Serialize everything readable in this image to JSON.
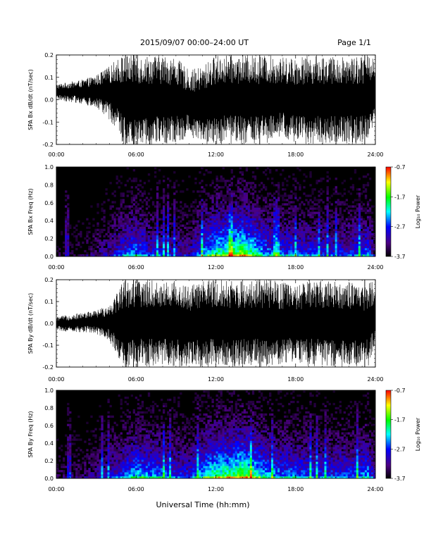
{
  "header": {
    "date_range": "2015/09/07  00:00–24:00 UT",
    "page": "Page 1/1"
  },
  "xlabel": "Universal Time (hh:mm)",
  "x_ticks": [
    "00:00",
    "06:00",
    "12:00",
    "18:00",
    "24:00"
  ],
  "colors": {
    "trace": "#000000",
    "background": "#ffffff"
  },
  "chart_data": [
    {
      "type": "line",
      "id": "bx-trace",
      "ylabel": "SPA Bx dB/dt (nT/sec)",
      "xlim": [
        0,
        24
      ],
      "ylim": [
        -0.2,
        0.2
      ],
      "y_ticks": [
        "0.2",
        "0.1",
        "0.0",
        "-0.1",
        "-0.2"
      ],
      "envelope": {
        "x": [
          0,
          1,
          2,
          3,
          4,
          4.5,
          5,
          5.5,
          6,
          6.5,
          7,
          8,
          9,
          10,
          11,
          12,
          13,
          14,
          15,
          16,
          17,
          18,
          19,
          20,
          21,
          22,
          23,
          23.5,
          24
        ],
        "upper": [
          0.07,
          0.08,
          0.09,
          0.11,
          0.15,
          0.18,
          0.2,
          0.2,
          0.2,
          0.2,
          0.2,
          0.2,
          0.19,
          0.13,
          0.15,
          0.2,
          0.2,
          0.2,
          0.2,
          0.2,
          0.19,
          0.19,
          0.2,
          0.2,
          0.19,
          0.2,
          0.2,
          0.2,
          0.2
        ],
        "lower": [
          0.0,
          -0.01,
          -0.02,
          -0.04,
          -0.09,
          -0.13,
          -0.2,
          -0.2,
          -0.2,
          -0.2,
          -0.2,
          -0.2,
          -0.2,
          -0.16,
          -0.2,
          -0.2,
          -0.2,
          -0.2,
          -0.2,
          -0.2,
          -0.17,
          -0.2,
          -0.2,
          -0.2,
          -0.2,
          -0.2,
          -0.2,
          -0.2,
          -0.1
        ]
      }
    },
    {
      "type": "heatmap",
      "id": "bx-spectrogram",
      "ylabel": "SPA Bx Freq (Hz)",
      "xlim": [
        0,
        24
      ],
      "ylim": [
        0.0,
        1.0
      ],
      "y_ticks": [
        "1.0",
        "0.8",
        "0.6",
        "0.4",
        "0.2",
        "0.0"
      ],
      "colorbar": {
        "label": "Log₁₀ Power",
        "range": [
          -3.7,
          -0.7
        ],
        "ticks": [
          "-0.7",
          "-1.7",
          "-2.7",
          "-3.7"
        ]
      },
      "activity": {
        "x": [
          0,
          2,
          4,
          5,
          6,
          7,
          9,
          10,
          11,
          12,
          13,
          14,
          15,
          16,
          18,
          20,
          22,
          23.5,
          24
        ],
        "level": [
          0.1,
          0.15,
          0.3,
          0.45,
          0.55,
          0.4,
          0.35,
          0.3,
          0.55,
          0.7,
          0.75,
          0.85,
          0.65,
          0.5,
          0.45,
          0.4,
          0.4,
          0.5,
          0.2
        ]
      }
    },
    {
      "type": "line",
      "id": "by-trace",
      "ylabel": "SPA By dB/dt (nT/sec)",
      "xlim": [
        0,
        24
      ],
      "ylim": [
        -0.2,
        0.2
      ],
      "y_ticks": [
        "0.2",
        "0.1",
        "0.0",
        "-0.1",
        "-0.2"
      ],
      "envelope": {
        "x": [
          0,
          1,
          2,
          3,
          4,
          4.5,
          5,
          5.5,
          6,
          6.5,
          7,
          8,
          9,
          10,
          11,
          12,
          13,
          14,
          15,
          16,
          17,
          18,
          19,
          20,
          21,
          22,
          23,
          23.5,
          24
        ],
        "upper": [
          0.03,
          0.04,
          0.05,
          0.06,
          0.09,
          0.14,
          0.2,
          0.2,
          0.2,
          0.2,
          0.2,
          0.19,
          0.2,
          0.17,
          0.2,
          0.2,
          0.2,
          0.2,
          0.2,
          0.2,
          0.19,
          0.17,
          0.2,
          0.2,
          0.2,
          0.19,
          0.17,
          0.2,
          0.18
        ],
        "lower": [
          -0.03,
          -0.04,
          -0.04,
          -0.05,
          -0.08,
          -0.14,
          -0.2,
          -0.2,
          -0.2,
          -0.2,
          -0.2,
          -0.19,
          -0.2,
          -0.2,
          -0.2,
          -0.2,
          -0.2,
          -0.2,
          -0.2,
          -0.2,
          -0.2,
          -0.17,
          -0.2,
          -0.2,
          -0.2,
          -0.2,
          -0.2,
          -0.2,
          -0.1
        ]
      }
    },
    {
      "type": "heatmap",
      "id": "by-spectrogram",
      "ylabel": "SPA By Freq (Hz)",
      "xlim": [
        0,
        24
      ],
      "ylim": [
        0.0,
        1.0
      ],
      "y_ticks": [
        "1.0",
        "0.8",
        "0.6",
        "0.4",
        "0.2",
        "0.0"
      ],
      "colorbar": {
        "label": "Log₁₀ Power",
        "range": [
          -3.7,
          -0.7
        ],
        "ticks": [
          "-0.7",
          "-1.7",
          "-2.7",
          "-3.7"
        ]
      },
      "activity": {
        "x": [
          0,
          2,
          4,
          5,
          6,
          7,
          9,
          10,
          11,
          12,
          13,
          14,
          15,
          16,
          18,
          20,
          22,
          23.5,
          24
        ],
        "level": [
          0.15,
          0.2,
          0.35,
          0.45,
          0.6,
          0.55,
          0.45,
          0.4,
          0.6,
          0.75,
          0.75,
          0.85,
          0.7,
          0.55,
          0.5,
          0.45,
          0.45,
          0.55,
          0.25
        ]
      }
    }
  ]
}
